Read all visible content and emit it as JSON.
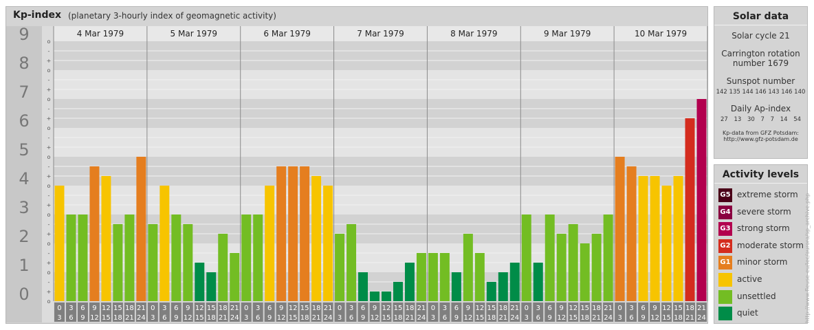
{
  "header": {
    "title": "Kp-index",
    "subtitle": "(planetary 3-hourly index of geomagnetic activity)"
  },
  "chart_data": {
    "type": "bar",
    "ylim": [
      0,
      9
    ],
    "y_ticks": [
      "0",
      "1",
      "2",
      "3",
      "4",
      "5",
      "6",
      "7",
      "8",
      "9"
    ],
    "minor_ticks": [
      "o",
      "+",
      "-"
    ],
    "days": [
      "4 Mar 1979",
      "5 Mar 1979",
      "6 Mar 1979",
      "7 Mar 1979",
      "8 Mar 1979",
      "9 Mar 1979",
      "10 Mar 1979"
    ],
    "hour_labels": [
      [
        "0",
        "3"
      ],
      [
        "3",
        "6"
      ],
      [
        "6",
        "9"
      ],
      [
        "9",
        "12"
      ],
      [
        "12",
        "15"
      ],
      [
        "15",
        "18"
      ],
      [
        "18",
        "21"
      ],
      [
        "21",
        "24"
      ]
    ],
    "values": [
      [
        4.0,
        3.0,
        3.0,
        4.667,
        4.333,
        2.667,
        3.0,
        5.0
      ],
      [
        2.667,
        4.0,
        3.0,
        2.667,
        1.333,
        1.0,
        2.333,
        1.667
      ],
      [
        3.0,
        3.0,
        4.0,
        4.667,
        4.667,
        4.667,
        4.333,
        4.0
      ],
      [
        2.333,
        2.667,
        1.0,
        0.333,
        0.333,
        0.667,
        1.333,
        1.667
      ],
      [
        1.667,
        1.667,
        1.0,
        2.333,
        1.667,
        0.667,
        1.0,
        1.333
      ],
      [
        3.0,
        1.333,
        3.0,
        2.333,
        2.667,
        2.0,
        2.333,
        3.0
      ],
      [
        5.0,
        4.667,
        4.333,
        4.333,
        4.0,
        4.333,
        6.333,
        7.0
      ]
    ]
  },
  "solar": {
    "title": "Solar data",
    "cycle": "Solar cycle 21",
    "carrington_l1": "Carrington rotation",
    "carrington_l2": "number 1679",
    "sunspot_label": "Sunspot number",
    "sunspot_values": "142 135 144 146 143 146 140",
    "ap_label": "Daily Ap-index",
    "ap_values": "27  13  30  7  7  14  54",
    "source_l1": "Kp-data from GFZ Potsdam:",
    "source_l2": "http://www.gfz-potsdam.de"
  },
  "activity": {
    "title": "Activity levels",
    "levels": [
      {
        "code": "G5",
        "label": "extreme storm",
        "color": "#4a0018"
      },
      {
        "code": "G4",
        "label": "severe storm",
        "color": "#8a0040"
      },
      {
        "code": "G3",
        "label": "strong storm",
        "color": "#b2004e"
      },
      {
        "code": "G2",
        "label": "moderate storm",
        "color": "#d42c1e"
      },
      {
        "code": "G1",
        "label": "minor storm",
        "color": "#e57e1f"
      },
      {
        "code": "",
        "label": "active",
        "color": "#f7c400"
      },
      {
        "code": "",
        "label": "unsettled",
        "color": "#73bd23"
      },
      {
        "code": "",
        "label": "quiet",
        "color": "#008c48"
      }
    ]
  },
  "side_note": "http://www.fleuse-eu/lec/aurora/sp_archive.php"
}
